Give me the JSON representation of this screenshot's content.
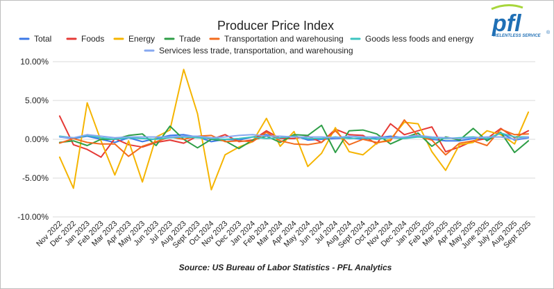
{
  "chart_data": {
    "type": "line",
    "title": "Producer Price Index",
    "source": "Source: US Bureau of Labor Statistics - PFL Analytics",
    "logo": {
      "text": "pfl",
      "tagline": "RELENTLESS SERVICE",
      "mark": "®"
    },
    "ylim": [
      -10,
      10
    ],
    "y_ticks": [
      "10.00%",
      "5.00%",
      "0.00%",
      "-5.00%",
      "-10.00%"
    ],
    "y_tick_values": [
      10,
      5,
      0,
      -5,
      -10
    ],
    "grid": true,
    "legend_position": "top",
    "categories": [
      "Nov 2022",
      "Dec 2022",
      "Jan 2023",
      "Feb 2023",
      "Mar 2023",
      "Apr 2023",
      "May 2023",
      "Jun 2023",
      "Jul 2023",
      "Aug 2023",
      "Sept 2023",
      "Oct 2024",
      "Nov 2023",
      "Dec 2023",
      "Jan 2024",
      "Feb 2024",
      "Mar 2024",
      "Apr 2024",
      "May 2024",
      "Jun 2024",
      "Jul 2024",
      "Aug 2024",
      "Sept 2024",
      "Oct 2024",
      "Nov 2024",
      "Dec 2024",
      "Jan 2025",
      "Feb 2025",
      "Mar 2025",
      "Apr 2025",
      "May 2025",
      "June 2025",
      "July 2025",
      "Aug 2025",
      "Sept 2025"
    ],
    "series": [
      {
        "name": "Total",
        "color": "#3b78e7",
        "values": [
          0.3,
          0.1,
          0.4,
          0.0,
          -0.4,
          0.2,
          -0.3,
          0.1,
          0.5,
          0.6,
          0.3,
          -0.3,
          0.0,
          -0.1,
          0.3,
          0.6,
          0.1,
          0.5,
          -0.1,
          0.0,
          0.1,
          0.2,
          0.0,
          0.2,
          0.4,
          0.2,
          0.4,
          0.0,
          -0.2,
          -0.2,
          0.1,
          0.0,
          0.8,
          -0.1,
          0.2
        ]
      },
      {
        "name": "Foods",
        "color": "#e53935",
        "values": [
          3.0,
          -0.7,
          -1.3,
          -2.3,
          0.1,
          -0.7,
          -1.0,
          -0.4,
          -0.1,
          -0.5,
          0.4,
          0.0,
          0.6,
          -0.3,
          -0.1,
          1.1,
          0.1,
          0.1,
          0.4,
          -0.4,
          1.3,
          0.6,
          0.5,
          -0.6,
          2.0,
          0.6,
          1.1,
          1.6,
          -1.6,
          -1.0,
          -0.2,
          0.1,
          1.4,
          0.2,
          1.1
        ]
      },
      {
        "name": "Energy",
        "color": "#f5b400",
        "values": [
          -2.3,
          -6.3,
          4.7,
          -0.2,
          -4.6,
          -0.2,
          -5.5,
          0.3,
          1.2,
          9.0,
          3.3,
          -6.5,
          -2.0,
          -1.0,
          -0.3,
          2.7,
          -0.9,
          1.0,
          -3.5,
          -1.8,
          1.5,
          -1.6,
          -2.0,
          -0.5,
          0.0,
          2.2,
          2.0,
          -1.6,
          -4.0,
          -0.7,
          -0.4,
          1.1,
          0.6,
          -0.6,
          3.5
        ]
      },
      {
        "name": "Trade",
        "color": "#2e9e47",
        "values": [
          -0.4,
          -0.2,
          -0.8,
          0.0,
          0.0,
          0.5,
          0.7,
          -0.8,
          1.7,
          0.0,
          -1.1,
          0.0,
          -0.2,
          -1.2,
          -0.1,
          0.4,
          -0.4,
          0.6,
          0.5,
          1.8,
          -1.7,
          1.1,
          1.2,
          0.7,
          -0.6,
          0.2,
          0.8,
          -0.9,
          0.3,
          -0.1,
          1.4,
          -0.2,
          0.9,
          -1.7,
          -0.2
        ]
      },
      {
        "name": "Transportation and warehousing",
        "color": "#f26b1d",
        "values": [
          -0.5,
          0.1,
          -0.4,
          -0.6,
          -0.6,
          -2.2,
          -0.9,
          -0.3,
          0.3,
          0.0,
          0.4,
          0.5,
          -0.3,
          -0.2,
          -0.3,
          0.9,
          -0.2,
          -0.6,
          -0.7,
          -0.4,
          1.1,
          -0.7,
          0.0,
          -0.4,
          -0.2,
          2.5,
          0.4,
          -0.1,
          -2.0,
          -0.5,
          -0.2,
          -0.8,
          1.3,
          0.6,
          0.7
        ]
      },
      {
        "name": "Goods less foods and energy",
        "color": "#3cc4c0",
        "values": [
          0.4,
          0.2,
          0.5,
          0.2,
          0.0,
          0.2,
          0.1,
          0.0,
          0.2,
          0.3,
          0.2,
          0.1,
          0.0,
          0.1,
          0.3,
          0.1,
          0.2,
          0.4,
          0.1,
          0.1,
          0.3,
          0.1,
          0.2,
          0.0,
          0.2,
          0.1,
          0.3,
          0.2,
          0.1,
          0.2,
          0.3,
          0.1,
          0.8,
          0.3,
          0.3
        ]
      },
      {
        "name": "Services less trade, transportation, and warehousing",
        "color": "#86a8f0",
        "values": [
          0.3,
          0.2,
          0.6,
          0.4,
          0.2,
          0.3,
          0.3,
          0.3,
          0.3,
          0.4,
          0.4,
          0.2,
          0.3,
          0.5,
          0.6,
          0.4,
          0.4,
          0.3,
          0.3,
          0.3,
          0.2,
          0.4,
          0.3,
          0.3,
          0.2,
          0.3,
          0.5,
          0.3,
          0.2,
          0.1,
          0.2,
          0.3,
          0.3,
          0.0,
          0.3
        ]
      }
    ]
  }
}
